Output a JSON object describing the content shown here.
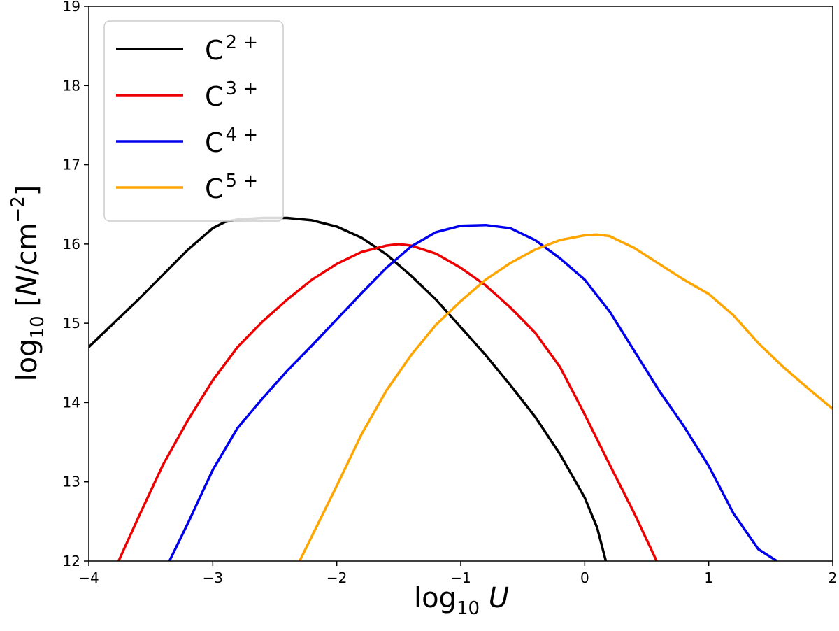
{
  "chart_data": {
    "type": "line",
    "xlabel": "log10 U",
    "ylabel": "log10 [N/cm−2]",
    "xlim": [
      -4,
      2
    ],
    "ylim": [
      12,
      19
    ],
    "xticks": [
      -4,
      -3,
      -2,
      -1,
      0,
      1,
      2
    ],
    "xtick_labels": [
      "−4",
      "−3",
      "−2",
      "−1",
      "0",
      "1",
      "2"
    ],
    "yticks": [
      12,
      13,
      14,
      15,
      16,
      17,
      18,
      19
    ],
    "ytick_labels": [
      "12",
      "13",
      "14",
      "15",
      "16",
      "17",
      "18",
      "19"
    ],
    "grid": false,
    "legend_position": "top-left",
    "series": [
      {
        "name": "C",
        "charge": "2 +",
        "color": "#000000",
        "x": [
          -4.0,
          -3.6,
          -3.2,
          -3.0,
          -2.9,
          -2.8,
          -2.6,
          -2.4,
          -2.2,
          -2.0,
          -1.8,
          -1.6,
          -1.4,
          -1.2,
          -1.0,
          -0.8,
          -0.6,
          -0.4,
          -0.2,
          0.0,
          0.1,
          0.17
        ],
        "y": [
          14.7,
          15.3,
          15.93,
          16.2,
          16.28,
          16.31,
          16.33,
          16.33,
          16.3,
          16.22,
          16.08,
          15.87,
          15.6,
          15.3,
          14.95,
          14.6,
          14.22,
          13.82,
          13.35,
          12.8,
          12.42,
          12.0
        ]
      },
      {
        "name": "C",
        "charge": "3 +",
        "color": "#ee0000",
        "x": [
          -3.76,
          -3.6,
          -3.4,
          -3.2,
          -3.0,
          -2.8,
          -2.6,
          -2.4,
          -2.2,
          -2.0,
          -1.8,
          -1.6,
          -1.5,
          -1.4,
          -1.2,
          -1.0,
          -0.8,
          -0.6,
          -0.4,
          -0.2,
          0.0,
          0.2,
          0.4,
          0.58
        ],
        "y": [
          12.0,
          12.55,
          13.22,
          13.78,
          14.28,
          14.7,
          15.02,
          15.3,
          15.55,
          15.75,
          15.9,
          15.98,
          16.0,
          15.98,
          15.88,
          15.7,
          15.48,
          15.2,
          14.88,
          14.45,
          13.85,
          13.22,
          12.6,
          12.0
        ]
      },
      {
        "name": "C",
        "charge": "4 +",
        "color": "#0000ee",
        "x": [
          -3.35,
          -3.2,
          -3.0,
          -2.8,
          -2.6,
          -2.4,
          -2.2,
          -2.0,
          -1.8,
          -1.6,
          -1.4,
          -1.2,
          -1.0,
          -0.8,
          -0.6,
          -0.4,
          -0.2,
          0.0,
          0.2,
          0.4,
          0.6,
          0.8,
          1.0,
          1.2,
          1.4,
          1.55
        ],
        "y": [
          12.0,
          12.48,
          13.15,
          13.68,
          14.05,
          14.4,
          14.72,
          15.05,
          15.38,
          15.7,
          15.97,
          16.15,
          16.23,
          16.24,
          16.2,
          16.05,
          15.82,
          15.55,
          15.15,
          14.65,
          14.15,
          13.7,
          13.2,
          12.6,
          12.15,
          12.0
        ]
      },
      {
        "name": "C",
        "charge": "5 +",
        "color": "#ffa500",
        "x": [
          -2.3,
          -2.0,
          -1.8,
          -1.6,
          -1.4,
          -1.2,
          -1.0,
          -0.8,
          -0.6,
          -0.4,
          -0.2,
          0.0,
          0.1,
          0.2,
          0.4,
          0.6,
          0.8,
          1.0,
          1.2,
          1.4,
          1.6,
          1.8,
          2.0
        ],
        "y": [
          12.0,
          12.95,
          13.6,
          14.15,
          14.6,
          14.98,
          15.28,
          15.55,
          15.76,
          15.93,
          16.05,
          16.11,
          16.12,
          16.1,
          15.95,
          15.75,
          15.55,
          15.37,
          15.1,
          14.75,
          14.45,
          14.18,
          13.92
        ]
      }
    ]
  }
}
